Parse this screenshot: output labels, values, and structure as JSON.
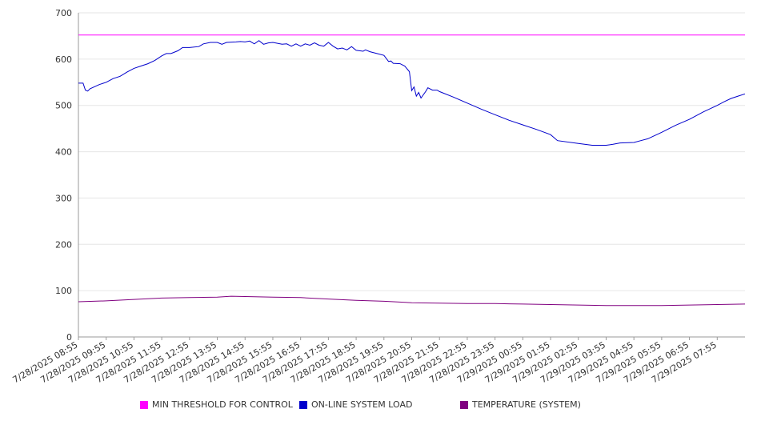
{
  "chart_data": {
    "type": "line",
    "ylim": [
      0,
      700
    ],
    "yticks": [
      0,
      100,
      200,
      300,
      400,
      500,
      600,
      700
    ],
    "grid": true,
    "legend_position": "bottom",
    "x_tick_labels": [
      "7/28/2025 08:55",
      "7/28/2025 09:55",
      "7/28/2025 10:55",
      "7/28/2025 11:55",
      "7/28/2025 12:55",
      "7/28/2025 13:55",
      "7/28/2025 14:55",
      "7/28/2025 15:55",
      "7/28/2025 16:55",
      "7/28/2025 17:55",
      "7/28/2025 18:55",
      "7/28/2025 19:55",
      "7/28/2025 20:55",
      "7/28/2025 21:55",
      "7/28/2025 22:55",
      "7/28/2025 23:55",
      "7/29/2025 00:55",
      "7/29/2025 01:55",
      "7/29/2025 02:55",
      "7/29/2025 03:55",
      "7/29/2025 04:55",
      "7/29/2025 05:55",
      "7/29/2025 06:55",
      "7/29/2025 07:55"
    ],
    "series": [
      {
        "name": "MIN THRESHOLD FOR CONTROL",
        "color": "#ff00ff",
        "points": [
          [
            "7/28/2025 08:55",
            652
          ],
          [
            "7/29/2025 08:55",
            652
          ]
        ]
      },
      {
        "name": "ON-LINE SYSTEM LOAD",
        "color": "#0000cc",
        "points": [
          [
            "7/28/2025 08:55",
            548
          ],
          [
            "7/28/2025 09:05",
            548
          ],
          [
            "7/28/2025 09:10",
            533
          ],
          [
            "7/28/2025 09:15",
            531
          ],
          [
            "7/28/2025 09:20",
            536
          ],
          [
            "7/28/2025 09:40",
            545
          ],
          [
            "7/28/2025 09:55",
            550
          ],
          [
            "7/28/2025 10:10",
            558
          ],
          [
            "7/28/2025 10:25",
            563
          ],
          [
            "7/28/2025 10:40",
            572
          ],
          [
            "7/28/2025 10:55",
            580
          ],
          [
            "7/28/2025 11:10",
            585
          ],
          [
            "7/28/2025 11:25",
            590
          ],
          [
            "7/28/2025 11:40",
            597
          ],
          [
            "7/28/2025 11:55",
            607
          ],
          [
            "7/28/2025 12:05",
            612
          ],
          [
            "7/28/2025 12:15",
            612
          ],
          [
            "7/28/2025 12:30",
            618
          ],
          [
            "7/28/2025 12:40",
            625
          ],
          [
            "7/28/2025 12:55",
            625
          ],
          [
            "7/28/2025 13:15",
            627
          ],
          [
            "7/28/2025 13:25",
            633
          ],
          [
            "7/28/2025 13:40",
            636
          ],
          [
            "7/28/2025 13:55",
            636
          ],
          [
            "7/28/2025 14:05",
            632
          ],
          [
            "7/28/2025 14:15",
            636
          ],
          [
            "7/28/2025 14:35",
            637
          ],
          [
            "7/28/2025 14:45",
            638
          ],
          [
            "7/28/2025 14:55",
            637
          ],
          [
            "7/28/2025 15:05",
            639
          ],
          [
            "7/28/2025 15:15",
            633
          ],
          [
            "7/28/2025 15:25",
            640
          ],
          [
            "7/28/2025 15:35",
            632
          ],
          [
            "7/28/2025 15:45",
            635
          ],
          [
            "7/28/2025 15:55",
            636
          ],
          [
            "7/28/2025 16:15",
            632
          ],
          [
            "7/28/2025 16:25",
            633
          ],
          [
            "7/28/2025 16:35",
            628
          ],
          [
            "7/28/2025 16:45",
            633
          ],
          [
            "7/28/2025 16:55",
            628
          ],
          [
            "7/28/2025 17:05",
            633
          ],
          [
            "7/28/2025 17:15",
            630
          ],
          [
            "7/28/2025 17:25",
            635
          ],
          [
            "7/28/2025 17:35",
            630
          ],
          [
            "7/28/2025 17:45",
            628
          ],
          [
            "7/28/2025 17:55",
            636
          ],
          [
            "7/28/2025 18:05",
            628
          ],
          [
            "7/28/2025 18:15",
            622
          ],
          [
            "7/28/2025 18:25",
            624
          ],
          [
            "7/28/2025 18:35",
            620
          ],
          [
            "7/28/2025 18:45",
            627
          ],
          [
            "7/28/2025 18:55",
            619
          ],
          [
            "7/28/2025 19:10",
            617
          ],
          [
            "7/28/2025 19:15",
            620
          ],
          [
            "7/28/2025 19:25",
            616
          ],
          [
            "7/28/2025 19:40",
            612
          ],
          [
            "7/28/2025 19:55",
            608
          ],
          [
            "7/28/2025 20:05",
            595
          ],
          [
            "7/28/2025 20:10",
            596
          ],
          [
            "7/28/2025 20:15",
            591
          ],
          [
            "7/28/2025 20:30",
            590
          ],
          [
            "7/28/2025 20:40",
            585
          ],
          [
            "7/28/2025 20:50",
            573
          ],
          [
            "7/28/2025 20:55",
            532
          ],
          [
            "7/28/2025 21:00",
            540
          ],
          [
            "7/28/2025 21:05",
            520
          ],
          [
            "7/28/2025 21:10",
            528
          ],
          [
            "7/28/2025 21:15",
            516
          ],
          [
            "7/28/2025 21:25",
            530
          ],
          [
            "7/28/2025 21:30",
            538
          ],
          [
            "7/28/2025 21:40",
            533
          ],
          [
            "7/28/2025 21:50",
            533
          ],
          [
            "7/28/2025 21:55",
            530
          ],
          [
            "7/28/2025 22:25",
            518
          ],
          [
            "7/28/2025 22:55",
            505
          ],
          [
            "7/28/2025 23:25",
            492
          ],
          [
            "7/28/2025 23:55",
            480
          ],
          [
            "7/29/2025 00:25",
            468
          ],
          [
            "7/29/2025 00:55",
            458
          ],
          [
            "7/29/2025 01:25",
            448
          ],
          [
            "7/29/2025 01:55",
            437
          ],
          [
            "7/29/2025 02:10",
            424
          ],
          [
            "7/29/2025 02:55",
            418
          ],
          [
            "7/29/2025 03:25",
            414
          ],
          [
            "7/29/2025 03:55",
            414
          ],
          [
            "7/29/2025 04:10",
            416
          ],
          [
            "7/29/2025 04:25",
            419
          ],
          [
            "7/29/2025 04:55",
            420
          ],
          [
            "7/29/2025 05:10",
            424
          ],
          [
            "7/29/2025 05:25",
            428
          ],
          [
            "7/29/2025 05:55",
            442
          ],
          [
            "7/29/2025 06:25",
            457
          ],
          [
            "7/29/2025 06:55",
            470
          ],
          [
            "7/29/2025 07:25",
            486
          ],
          [
            "7/29/2025 07:55",
            500
          ],
          [
            "7/29/2025 08:10",
            508
          ],
          [
            "7/29/2025 08:25",
            515
          ],
          [
            "7/29/2025 08:40",
            520
          ],
          [
            "7/29/2025 08:55",
            525
          ]
        ]
      },
      {
        "name": "TEMPERATURE (SYSTEM)",
        "color": "#800080",
        "points": [
          [
            "7/28/2025 08:55",
            76
          ],
          [
            "7/28/2025 09:55",
            78
          ],
          [
            "7/28/2025 10:55",
            81
          ],
          [
            "7/28/2025 11:55",
            84
          ],
          [
            "7/28/2025 12:55",
            85
          ],
          [
            "7/28/2025 13:55",
            86
          ],
          [
            "7/28/2025 14:25",
            88
          ],
          [
            "7/28/2025 15:55",
            86
          ],
          [
            "7/28/2025 16:55",
            85
          ],
          [
            "7/28/2025 17:55",
            82
          ],
          [
            "7/28/2025 18:55",
            79
          ],
          [
            "7/28/2025 19:55",
            77
          ],
          [
            "7/28/2025 20:55",
            74
          ],
          [
            "7/28/2025 21:55",
            73
          ],
          [
            "7/28/2025 22:55",
            72
          ],
          [
            "7/28/2025 23:55",
            72
          ],
          [
            "7/29/2025 00:55",
            71
          ],
          [
            "7/29/2025 01:55",
            70
          ],
          [
            "7/29/2025 02:55",
            69
          ],
          [
            "7/29/2025 03:55",
            68
          ],
          [
            "7/29/2025 04:55",
            68
          ],
          [
            "7/29/2025 05:55",
            68
          ],
          [
            "7/29/2025 06:55",
            69
          ],
          [
            "7/29/2025 07:55",
            70
          ],
          [
            "7/29/2025 08:55",
            71
          ]
        ]
      }
    ]
  }
}
